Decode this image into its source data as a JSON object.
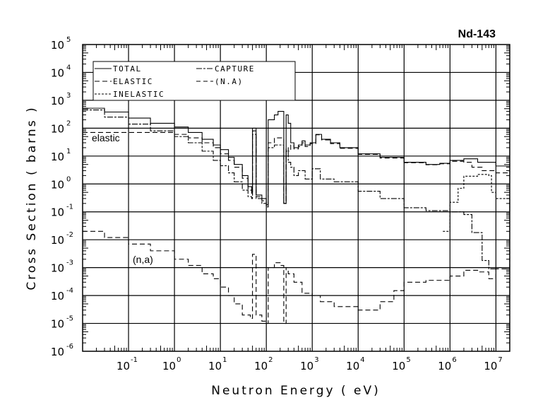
{
  "chart_data": {
    "type": "line",
    "title": "Nd-143",
    "xlabel": "Neutron Energy ( eV)",
    "ylabel": "Cross Section ( barns )",
    "xscale": "log",
    "yscale": "log",
    "xlim": [
      0.01,
      20000000
    ],
    "ylim": [
      1e-06,
      100000
    ],
    "grid": true,
    "legend_position": "top-left",
    "x_ticks": [
      {
        "base": "10",
        "exp": "-1",
        "value": 0.1
      },
      {
        "base": "10",
        "exp": "0",
        "value": 1
      },
      {
        "base": "10",
        "exp": "1",
        "value": 10
      },
      {
        "base": "10",
        "exp": "2",
        "value": 100
      },
      {
        "base": "10",
        "exp": "3",
        "value": 1000
      },
      {
        "base": "10",
        "exp": "4",
        "value": 10000
      },
      {
        "base": "10",
        "exp": "5",
        "value": 100000
      },
      {
        "base": "10",
        "exp": "6",
        "value": 1000000
      },
      {
        "base": "10",
        "exp": "7",
        "value": 10000000
      }
    ],
    "y_ticks": [
      {
        "base": "10",
        "exp": "5",
        "value": 100000
      },
      {
        "base": "10",
        "exp": "4",
        "value": 10000
      },
      {
        "base": "10",
        "exp": "3",
        "value": 1000
      },
      {
        "base": "10",
        "exp": "2",
        "value": 100
      },
      {
        "base": "10",
        "exp": "1",
        "value": 10
      },
      {
        "base": "10",
        "exp": "0",
        "value": 1
      },
      {
        "base": "10",
        "exp": "-1",
        "value": 0.1
      },
      {
        "base": "10",
        "exp": "-2",
        "value": 0.01
      },
      {
        "base": "10",
        "exp": "-3",
        "value": 0.001
      },
      {
        "base": "10",
        "exp": "-4",
        "value": 0.0001
      },
      {
        "base": "10",
        "exp": "-5",
        "value": 1e-05
      },
      {
        "base": "10",
        "exp": "-6",
        "value": 1e-06
      }
    ],
    "annotations": [
      "elastic",
      "(n,a)"
    ],
    "series": [
      {
        "name": "TOTAL",
        "style": "solid",
        "points": [
          [
            0.01,
            520
          ],
          [
            0.03,
            380
          ],
          [
            0.1,
            230
          ],
          [
            0.3,
            150
          ],
          [
            1,
            110
          ],
          [
            2,
            70
          ],
          [
            4,
            40
          ],
          [
            7,
            25
          ],
          [
            10,
            17
          ],
          [
            15,
            9
          ],
          [
            20,
            5
          ],
          [
            30,
            2
          ],
          [
            40,
            0.8
          ],
          [
            48,
            0.5
          ],
          [
            50,
            100
          ],
          [
            60,
            0.4
          ],
          [
            80,
            0.3
          ],
          [
            100,
            0.18
          ],
          [
            110,
            200
          ],
          [
            150,
            300
          ],
          [
            180,
            400
          ],
          [
            240,
            0.2
          ],
          [
            270,
            300
          ],
          [
            300,
            150
          ],
          [
            340,
            30
          ],
          [
            400,
            20
          ],
          [
            500,
            25
          ],
          [
            600,
            35
          ],
          [
            700,
            25
          ],
          [
            900,
            30
          ],
          [
            1200,
            60
          ],
          [
            1600,
            40
          ],
          [
            2500,
            30
          ],
          [
            4000,
            20
          ],
          [
            10000,
            12
          ],
          [
            30000,
            9
          ],
          [
            100000,
            6
          ],
          [
            300000,
            5
          ],
          [
            600000,
            5.5
          ],
          [
            1000000,
            7
          ],
          [
            2000000,
            8
          ],
          [
            4000000,
            6
          ],
          [
            10000000,
            4.4
          ],
          [
            20000000,
            5.3
          ]
        ]
      },
      {
        "name": "ELASTIC",
        "style": "dash",
        "points": [
          [
            0.01,
            70
          ],
          [
            0.5,
            70
          ],
          [
            1,
            60
          ],
          [
            2,
            45
          ],
          [
            4,
            30
          ],
          [
            7,
            20
          ],
          [
            10,
            12
          ],
          [
            15,
            7
          ],
          [
            20,
            4
          ],
          [
            30,
            1.6
          ],
          [
            40,
            0.6
          ],
          [
            48,
            0.4
          ],
          [
            50,
            80
          ],
          [
            60,
            0.35
          ],
          [
            80,
            0.25
          ],
          [
            100,
            0.15
          ],
          [
            110,
            30
          ],
          [
            150,
            45
          ],
          [
            200,
            45
          ],
          [
            240,
            0.2
          ],
          [
            270,
            20
          ],
          [
            300,
            15
          ],
          [
            340,
            25
          ],
          [
            400,
            18
          ],
          [
            500,
            22
          ],
          [
            600,
            30
          ],
          [
            700,
            22
          ],
          [
            900,
            28
          ],
          [
            1200,
            58
          ],
          [
            1600,
            38
          ],
          [
            2500,
            28
          ],
          [
            4000,
            19
          ],
          [
            10000,
            11.5
          ],
          [
            30000,
            8.5
          ],
          [
            100000,
            5.8
          ],
          [
            300000,
            4.9
          ],
          [
            600000,
            5.3
          ],
          [
            1000000,
            6.5
          ],
          [
            2000000,
            6
          ],
          [
            3000000,
            4
          ],
          [
            5000000,
            3
          ],
          [
            10000000,
            2.5
          ],
          [
            20000000,
            3
          ]
        ]
      },
      {
        "name": "CAPTURE",
        "style": "dashdot",
        "points": [
          [
            0.01,
            450
          ],
          [
            0.03,
            250
          ],
          [
            0.1,
            140
          ],
          [
            0.3,
            80
          ],
          [
            1,
            50
          ],
          [
            2,
            30
          ],
          [
            4,
            15
          ],
          [
            7,
            7
          ],
          [
            10,
            4.5
          ],
          [
            15,
            2.5
          ],
          [
            20,
            1.2
          ],
          [
            30,
            0.6
          ],
          [
            40,
            0.35
          ],
          [
            48,
            0.3
          ],
          [
            50,
            60
          ],
          [
            60,
            0.3
          ],
          [
            80,
            0.2
          ],
          [
            100,
            0.15
          ],
          [
            110,
            20
          ],
          [
            150,
            25
          ],
          [
            200,
            25
          ],
          [
            240,
            0.2
          ],
          [
            270,
            15
          ],
          [
            300,
            6
          ],
          [
            340,
            4
          ],
          [
            400,
            2
          ],
          [
            500,
            3
          ],
          [
            700,
            1.5
          ],
          [
            1000,
            3.5
          ],
          [
            1500,
            1.5
          ],
          [
            3000,
            1.2
          ],
          [
            10000,
            0.55
          ],
          [
            30000,
            0.3
          ],
          [
            100000,
            0.14
          ],
          [
            300000,
            0.11
          ],
          [
            1000000,
            0.1
          ],
          [
            2000000,
            0.08
          ],
          [
            3000000,
            0.018
          ],
          [
            5000000,
            0.0018
          ],
          [
            7000000,
            0.0009
          ],
          [
            10000000,
            0.0009
          ]
        ]
      },
      {
        "name": "INELASTIC",
        "style": "dot",
        "points": [
          [
            700000,
            0.02
          ],
          [
            1000000,
            0.22
          ],
          [
            1500000,
            0.7
          ],
          [
            2000000,
            1.9
          ],
          [
            4000000,
            2.2
          ],
          [
            7000000,
            2
          ],
          [
            8000000,
            0.5
          ],
          [
            10000000,
            0.3
          ],
          [
            20000000,
            0.1
          ]
        ]
      },
      {
        "name": "(N.A)",
        "style": "dash",
        "points": [
          [
            0.01,
            0.02
          ],
          [
            0.03,
            0.012
          ],
          [
            0.1,
            0.007
          ],
          [
            0.3,
            0.004
          ],
          [
            1,
            0.002
          ],
          [
            2,
            0.0012
          ],
          [
            4,
            0.0006
          ],
          [
            7,
            0.0004
          ],
          [
            10,
            0.0002
          ],
          [
            15,
            0.0001
          ],
          [
            20,
            5e-05
          ],
          [
            30,
            2e-05
          ],
          [
            45,
            1.5e-05
          ],
          [
            50,
            0.003
          ],
          [
            60,
            2e-05
          ],
          [
            80,
            1.2e-05
          ],
          [
            100,
            1e-05
          ],
          [
            110,
            0.001
          ],
          [
            150,
            0.0015
          ],
          [
            200,
            0.0012
          ],
          [
            240,
            1e-05
          ],
          [
            270,
            0.001
          ],
          [
            300,
            0.0006
          ],
          [
            400,
            0.0003
          ],
          [
            600,
            0.00012
          ],
          [
            1000,
            0.0001
          ],
          [
            1500,
            6e-05
          ],
          [
            3000,
            4e-05
          ],
          [
            10000,
            3e-05
          ],
          [
            30000,
            6e-05
          ],
          [
            60000,
            0.00015
          ],
          [
            100000,
            0.0003
          ],
          [
            300000,
            0.00035
          ],
          [
            1000000,
            0.0005
          ],
          [
            2000000,
            0.0008
          ],
          [
            4000000,
            0.0007
          ],
          [
            7000000,
            0.0004
          ],
          [
            10000000,
            0.0009
          ],
          [
            20000000,
            0.005
          ]
        ]
      }
    ]
  }
}
